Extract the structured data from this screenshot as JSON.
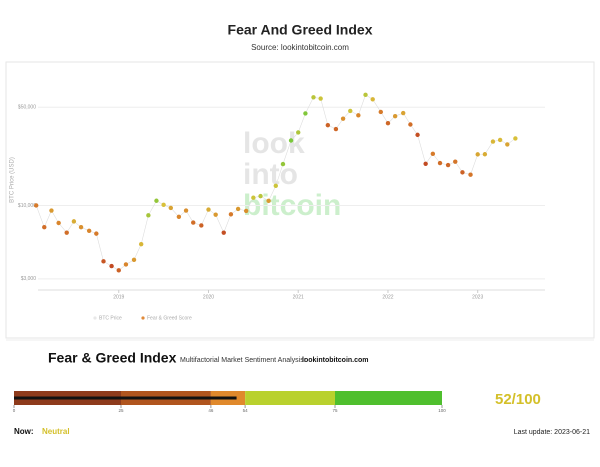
{
  "chart_data": {
    "type": "scatter",
    "title": "Fear And Greed Index",
    "subtitle": "Source: lookintobitcoin.com",
    "watermark": [
      "look",
      "into",
      "bitcoin"
    ],
    "y_label": "BTC Price (USD)",
    "log_y": true,
    "x": [
      2018.08,
      2018.17,
      2018.25,
      2018.33,
      2018.42,
      2018.5,
      2018.58,
      2018.67,
      2018.75,
      2018.83,
      2018.92,
      2019.0,
      2019.08,
      2019.17,
      2019.25,
      2019.33,
      2019.42,
      2019.5,
      2019.58,
      2019.67,
      2019.75,
      2019.83,
      2019.92,
      2020.0,
      2020.08,
      2020.17,
      2020.25,
      2020.33,
      2020.42,
      2020.5,
      2020.58,
      2020.67,
      2020.75,
      2020.83,
      2020.92,
      2021.0,
      2021.08,
      2021.17,
      2021.25,
      2021.33,
      2021.42,
      2021.5,
      2021.58,
      2021.67,
      2021.75,
      2021.83,
      2021.92,
      2022.0,
      2022.08,
      2022.17,
      2022.25,
      2022.33,
      2022.42,
      2022.5,
      2022.58,
      2022.67,
      2022.75,
      2022.83,
      2022.92,
      2023.0,
      2023.08,
      2023.17,
      2023.25,
      2023.33,
      2023.42
    ],
    "series": [
      {
        "name": "BTC Price",
        "color": "#e8e8e8",
        "values": [
          10000,
          7000,
          9200,
          7500,
          6400,
          7700,
          7000,
          6600,
          6300,
          4000,
          3700,
          3450,
          3800,
          4100,
          5300,
          8500,
          10800,
          10100,
          9600,
          8300,
          9200,
          7550,
          7200,
          9350,
          8600,
          6400,
          8650,
          9450,
          9140,
          11350,
          11650,
          10780,
          13800,
          19700,
          29000,
          33100,
          45200,
          58900,
          57700,
          37300,
          35000,
          41500,
          47100,
          43800,
          61300,
          57000,
          46300,
          38500,
          43200,
          45500,
          37700,
          31800,
          19800,
          23300,
          20050,
          19400,
          20500,
          17200,
          16550,
          23100,
          23150,
          28500,
          29250,
          27200,
          30000
        ]
      },
      {
        "name": "Fear & Greed Score",
        "color": "#e08a3a",
        "values": [
          30,
          25,
          45,
          35,
          25,
          55,
          40,
          35,
          30,
          15,
          10,
          20,
          35,
          45,
          60,
          80,
          85,
          65,
          50,
          35,
          40,
          25,
          20,
          55,
          45,
          12,
          30,
          45,
          40,
          70,
          75,
          45,
          70,
          85,
          92,
          78,
          90,
          75,
          70,
          20,
          22,
          40,
          70,
          35,
          75,
          60,
          30,
          22,
          45,
          50,
          25,
          12,
          10,
          30,
          25,
          22,
          28,
          20,
          28,
          52,
          55,
          60,
          62,
          50,
          65
        ]
      }
    ],
    "colorscale": [
      "#b8321e",
      "#d9822b",
      "#d8c33a",
      "#5cc93a"
    ],
    "xlim": [
      2018.1,
      2023.75
    ],
    "xticks": [
      2019,
      2020,
      2021,
      2022,
      2023
    ],
    "ylim": [
      2500,
      100000
    ],
    "yticks": [
      {
        "value": 3000,
        "label": "$3,000"
      },
      {
        "value": 10000,
        "label": "$10,000"
      },
      {
        "value": 50000,
        "label": "$50,000"
      }
    ],
    "grid": true
  },
  "gauge": {
    "title": "Fear & Greed Index",
    "subtitle": "Multifactorial Market Sentiment Analysis:",
    "source": "lookintobitcoin.com",
    "xlim": [
      0,
      100
    ],
    "ticks": [
      0,
      25,
      46,
      54,
      75,
      100
    ],
    "segment_colors": [
      "#8e3b1c",
      "#b0551e",
      "#e0892c",
      "#b9d12e",
      "#4fbf2e"
    ],
    "score": 52,
    "score_label": "52/100",
    "now_label": "Now:",
    "status": "Neutral",
    "last_update": "Last update: 2023-06-21"
  }
}
